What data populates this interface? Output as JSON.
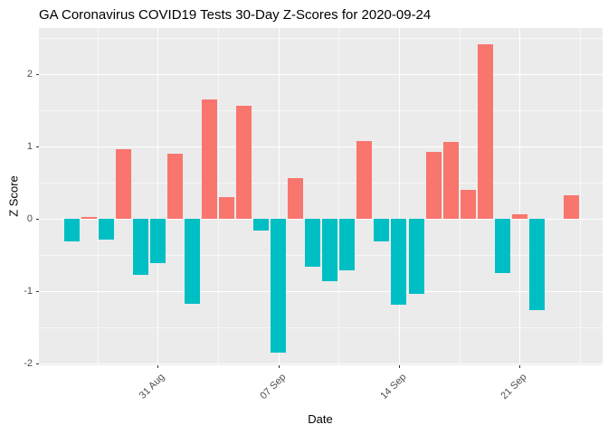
{
  "chart_data": {
    "type": "bar",
    "title": "GA Coronavirus COVID19 Tests 30-Day Z-Scores for 2020-09-24",
    "xlabel": "Date",
    "ylabel": "Z Score",
    "ylim": [
      -2.03,
      2.64
    ],
    "yticks": [
      2,
      1,
      0,
      -1,
      -2
    ],
    "xticks": [
      {
        "index": 5,
        "label": "31 Aug"
      },
      {
        "index": 12,
        "label": "07 Sep"
      },
      {
        "index": 19,
        "label": "14 Sep"
      },
      {
        "index": 26,
        "label": "21 Sep"
      }
    ],
    "categories": [
      "2020-08-26",
      "2020-08-27",
      "2020-08-28",
      "2020-08-29",
      "2020-08-30",
      "2020-08-31",
      "2020-09-01",
      "2020-09-02",
      "2020-09-03",
      "2020-09-04",
      "2020-09-05",
      "2020-09-06",
      "2020-09-07",
      "2020-09-08",
      "2020-09-09",
      "2020-09-10",
      "2020-09-11",
      "2020-09-12",
      "2020-09-13",
      "2020-09-14",
      "2020-09-15",
      "2020-09-16",
      "2020-09-17",
      "2020-09-18",
      "2020-09-19",
      "2020-09-20",
      "2020-09-21",
      "2020-09-22",
      "2020-09-23",
      "2020-09-24"
    ],
    "values": [
      -0.31,
      0.03,
      -0.29,
      0.96,
      -0.78,
      -0.62,
      0.9,
      -1.18,
      1.65,
      0.3,
      1.56,
      -0.16,
      -1.85,
      0.56,
      -0.66,
      -0.87,
      -0.71,
      1.08,
      -0.32,
      -1.19,
      -1.04,
      0.92,
      1.06,
      0.4,
      2.42,
      -0.75,
      0.06,
      -1.27,
      0.0,
      0.32
    ],
    "colors": {
      "positive": "#F8766D",
      "negative": "#00BFC4",
      "panel_background": "#EBEBEB",
      "gridline": "#FFFFFF",
      "tick_label": "#4D4D4D",
      "axis_title": "#000000"
    },
    "grid": "major and minor, white on grey panel",
    "legend": "none"
  }
}
